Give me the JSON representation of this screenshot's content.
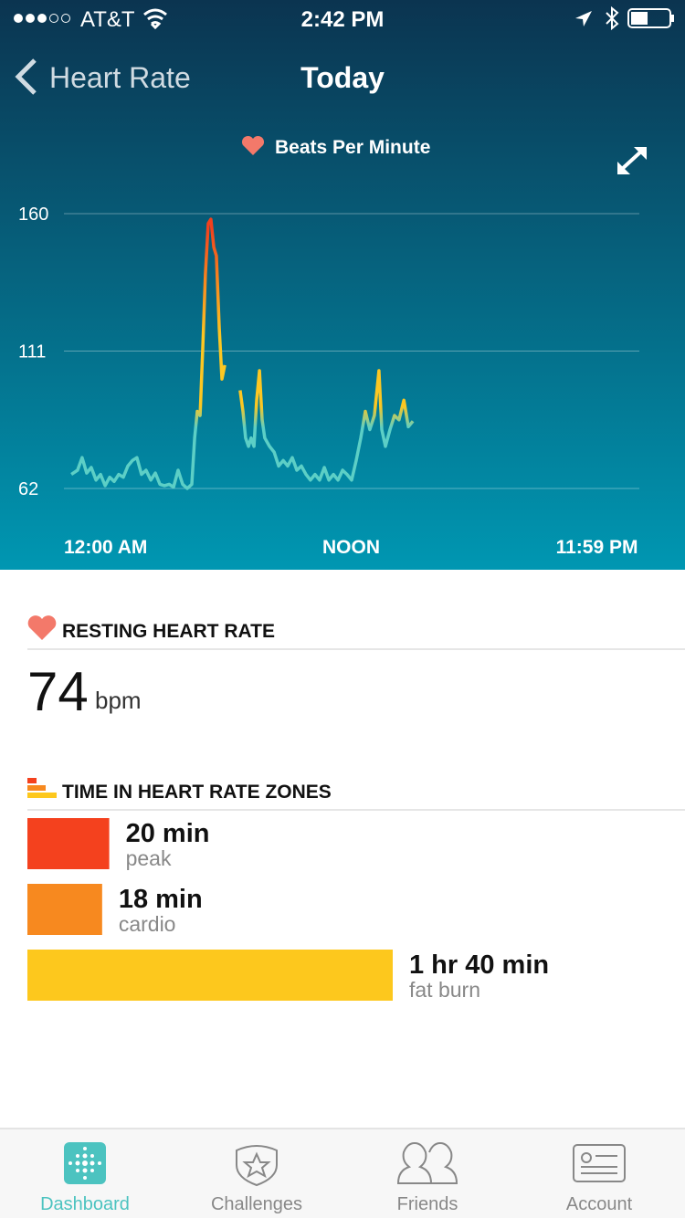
{
  "status_bar": {
    "carrier": "AT&T",
    "time": "2:42 PM"
  },
  "nav": {
    "back": "Heart Rate",
    "title": "Today"
  },
  "chart": {
    "type": "line",
    "title": "Beats Per Minute",
    "x": [
      0.31,
      0.57,
      0.76,
      0.95,
      1.14,
      1.34,
      1.53,
      1.72,
      1.91,
      2.1,
      2.29,
      2.48,
      2.67,
      2.86,
      3.05,
      3.24,
      3.43,
      3.63,
      3.82,
      4.01,
      4.2,
      4.39,
      4.58,
      4.77,
      4.96,
      5.15,
      5.34,
      5.46,
      5.57,
      5.69,
      5.8,
      5.91,
      6.03,
      6.14,
      6.26,
      6.37,
      6.49,
      6.6,
      6.72,
      6.9,
      7.36,
      7.48,
      7.59,
      7.71,
      7.82,
      7.94,
      8.05,
      8.17,
      8.28,
      8.39,
      8.59,
      8.78,
      8.97,
      9.16,
      9.35,
      9.54,
      9.73,
      9.92,
      10.11,
      10.3,
      10.49,
      10.68,
      10.88,
      11.07,
      11.26,
      11.45,
      11.64,
      11.83,
      12.02,
      12.21,
      12.4,
      12.59,
      12.78,
      12.97,
      13.16,
      13.28,
      13.43,
      13.62,
      13.81,
      14.0,
      14.2,
      14.39,
      14.58
    ],
    "values": [
      67,
      68.5,
      73,
      67.5,
      69.5,
      65,
      67,
      63,
      66,
      64.5,
      67,
      66,
      70,
      72,
      73,
      67,
      68.5,
      65,
      67.5,
      63.5,
      63,
      63.5,
      62.5,
      68.5,
      63.5,
      62,
      63.5,
      80,
      89.5,
      88,
      112,
      138.5,
      156.5,
      158,
      148,
      145,
      119,
      101,
      106,
      null,
      97,
      89.5,
      80,
      77,
      80,
      77,
      93.5,
      104,
      86.5,
      80,
      77,
      75,
      70,
      72,
      70,
      73,
      68.5,
      70,
      67,
      65,
      67,
      65,
      69.5,
      65,
      67,
      65,
      68.5,
      67,
      65,
      72,
      80,
      89.5,
      83,
      88,
      104,
      83,
      77,
      83,
      88,
      86.5,
      93.5,
      84,
      86
    ],
    "colors": [
      "#5ccfc6",
      "#fcc722",
      "#f7891f",
      "#f2401d"
    ],
    "xlim": [
      0,
      24
    ],
    "ylim": [
      62,
      160
    ],
    "yticks": [
      62,
      111,
      160
    ],
    "xticks": [
      {
        "value": 0,
        "label": "12:00 AM"
      },
      {
        "value": 12,
        "label": "NOON"
      },
      {
        "value": 23.98,
        "label": "11:59 PM"
      }
    ],
    "grid": true
  },
  "resting": {
    "title": "RESTING HEART RATE",
    "value": 74,
    "unit": "bpm"
  },
  "zones": {
    "title": "TIME IN HEART RATE ZONES",
    "items": [
      {
        "minutes": 20,
        "label": "20 min",
        "name": "peak",
        "color": "#f4411e"
      },
      {
        "minutes": 18,
        "label": "18 min",
        "name": "cardio",
        "color": "#f7891f"
      },
      {
        "minutes": 100,
        "label": "1 hr 40 min",
        "name": "fat burn",
        "color": "#fdc81d"
      }
    ]
  },
  "tabs": [
    "Dashboard",
    "Challenges",
    "Friends",
    "Account"
  ]
}
